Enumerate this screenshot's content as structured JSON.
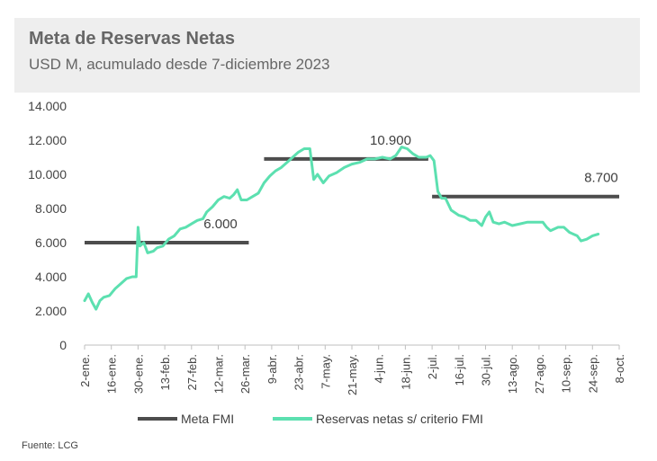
{
  "header": {
    "title": "Meta de Reservas Netas",
    "subtitle": "USD M, acumulado desde 7-diciembre 2023"
  },
  "source": "Fuente: LCG",
  "colors": {
    "meta": "#4d4d4d",
    "reservas": "#5ce0b0",
    "header_bg": "#eeeeee"
  },
  "chart_data": {
    "type": "line",
    "ylim": [
      0,
      14000
    ],
    "yticks": [
      0,
      2000,
      4000,
      6000,
      8000,
      10000,
      12000,
      14000
    ],
    "ytick_labels": [
      "0",
      "2.000",
      "4.000",
      "6.000",
      "8.000",
      "10.000",
      "12.000",
      "14.000"
    ],
    "x_domain": [
      "2024-01-02",
      "2024-10-08"
    ],
    "xtick_dates": [
      "2024-01-02",
      "2024-01-16",
      "2024-01-30",
      "2024-02-13",
      "2024-02-27",
      "2024-03-12",
      "2024-03-26",
      "2024-04-09",
      "2024-04-23",
      "2024-05-07",
      "2024-05-21",
      "2024-06-04",
      "2024-06-18",
      "2024-07-02",
      "2024-07-16",
      "2024-07-30",
      "2024-08-13",
      "2024-08-27",
      "2024-09-10",
      "2024-09-24",
      "2024-10-08"
    ],
    "xtick_labels": [
      "2-ene.",
      "16-ene.",
      "30-ene.",
      "13-feb.",
      "27-feb.",
      "12-mar.",
      "26-mar.",
      "9-abr.",
      "23-abr.",
      "7-may.",
      "21-may.",
      "4-jun.",
      "18-jun.",
      "2-jul.",
      "16-jul.",
      "30-jul.",
      "13-ago.",
      "27-ago.",
      "10-sep.",
      "24-sep.",
      "8-oct."
    ],
    "series": [
      {
        "name": "Meta FMI",
        "kind": "step",
        "segments": [
          {
            "x0": "2024-01-02",
            "x1": "2024-03-28",
            "y": 6000,
            "label": "6.000"
          },
          {
            "x0": "2024-04-05",
            "x1": "2024-06-30",
            "y": 10900,
            "label": "10.900"
          },
          {
            "x0": "2024-07-02",
            "x1": "2024-10-08",
            "y": 8700,
            "label": "8.700"
          }
        ]
      },
      {
        "name": "Reservas netas s/ criterio FMI",
        "kind": "line",
        "points": [
          [
            "2024-01-02",
            2600
          ],
          [
            "2024-01-04",
            3000
          ],
          [
            "2024-01-06",
            2500
          ],
          [
            "2024-01-08",
            2100
          ],
          [
            "2024-01-10",
            2600
          ],
          [
            "2024-01-12",
            2800
          ],
          [
            "2024-01-15",
            2900
          ],
          [
            "2024-01-18",
            3300
          ],
          [
            "2024-01-21",
            3600
          ],
          [
            "2024-01-24",
            3900
          ],
          [
            "2024-01-27",
            4000
          ],
          [
            "2024-01-29",
            4000
          ],
          [
            "2024-01-30",
            6900
          ],
          [
            "2024-01-31",
            5800
          ],
          [
            "2024-02-02",
            6000
          ],
          [
            "2024-02-04",
            5400
          ],
          [
            "2024-02-07",
            5500
          ],
          [
            "2024-02-09",
            5700
          ],
          [
            "2024-02-12",
            5800
          ],
          [
            "2024-02-15",
            6200
          ],
          [
            "2024-02-18",
            6400
          ],
          [
            "2024-02-21",
            6800
          ],
          [
            "2024-02-24",
            6900
          ],
          [
            "2024-02-27",
            7100
          ],
          [
            "2024-03-01",
            7300
          ],
          [
            "2024-03-04",
            7400
          ],
          [
            "2024-03-06",
            7800
          ],
          [
            "2024-03-09",
            8100
          ],
          [
            "2024-03-12",
            8500
          ],
          [
            "2024-03-15",
            8700
          ],
          [
            "2024-03-18",
            8600
          ],
          [
            "2024-03-20",
            8800
          ],
          [
            "2024-03-22",
            9100
          ],
          [
            "2024-03-24",
            8500
          ],
          [
            "2024-03-27",
            8500
          ],
          [
            "2024-03-30",
            8700
          ],
          [
            "2024-04-02",
            8900
          ],
          [
            "2024-04-05",
            9500
          ],
          [
            "2024-04-08",
            9900
          ],
          [
            "2024-04-11",
            10200
          ],
          [
            "2024-04-14",
            10400
          ],
          [
            "2024-04-17",
            10700
          ],
          [
            "2024-04-20",
            11000
          ],
          [
            "2024-04-23",
            11300
          ],
          [
            "2024-04-26",
            11500
          ],
          [
            "2024-04-29",
            11500
          ],
          [
            "2024-05-01",
            9700
          ],
          [
            "2024-05-03",
            10000
          ],
          [
            "2024-05-06",
            9500
          ],
          [
            "2024-05-09",
            9900
          ],
          [
            "2024-05-13",
            10100
          ],
          [
            "2024-05-17",
            10400
          ],
          [
            "2024-05-21",
            10600
          ],
          [
            "2024-05-25",
            10700
          ],
          [
            "2024-05-29",
            10900
          ],
          [
            "2024-06-02",
            10900
          ],
          [
            "2024-06-06",
            11000
          ],
          [
            "2024-06-10",
            10900
          ],
          [
            "2024-06-13",
            11100
          ],
          [
            "2024-06-16",
            11600
          ],
          [
            "2024-06-19",
            11500
          ],
          [
            "2024-06-22",
            11200
          ],
          [
            "2024-06-25",
            11000
          ],
          [
            "2024-06-29",
            11000
          ],
          [
            "2024-07-01",
            11100
          ],
          [
            "2024-07-03",
            10800
          ],
          [
            "2024-07-05",
            9000
          ],
          [
            "2024-07-07",
            8600
          ],
          [
            "2024-07-09",
            8600
          ],
          [
            "2024-07-12",
            7900
          ],
          [
            "2024-07-16",
            7600
          ],
          [
            "2024-07-19",
            7500
          ],
          [
            "2024-07-22",
            7300
          ],
          [
            "2024-07-25",
            7300
          ],
          [
            "2024-07-28",
            7000
          ],
          [
            "2024-07-30",
            7500
          ],
          [
            "2024-08-01",
            7800
          ],
          [
            "2024-08-03",
            7200
          ],
          [
            "2024-08-06",
            7100
          ],
          [
            "2024-08-09",
            7200
          ],
          [
            "2024-08-13",
            7000
          ],
          [
            "2024-08-17",
            7100
          ],
          [
            "2024-08-21",
            7200
          ],
          [
            "2024-08-25",
            7200
          ],
          [
            "2024-08-29",
            7200
          ],
          [
            "2024-08-31",
            6900
          ],
          [
            "2024-09-02",
            6700
          ],
          [
            "2024-09-06",
            6900
          ],
          [
            "2024-09-09",
            6900
          ],
          [
            "2024-09-12",
            6600
          ],
          [
            "2024-09-16",
            6400
          ],
          [
            "2024-09-18",
            6100
          ],
          [
            "2024-09-21",
            6200
          ],
          [
            "2024-09-24",
            6400
          ],
          [
            "2024-09-27",
            6500
          ]
        ]
      }
    ],
    "legend": {
      "position": "bottom"
    }
  }
}
